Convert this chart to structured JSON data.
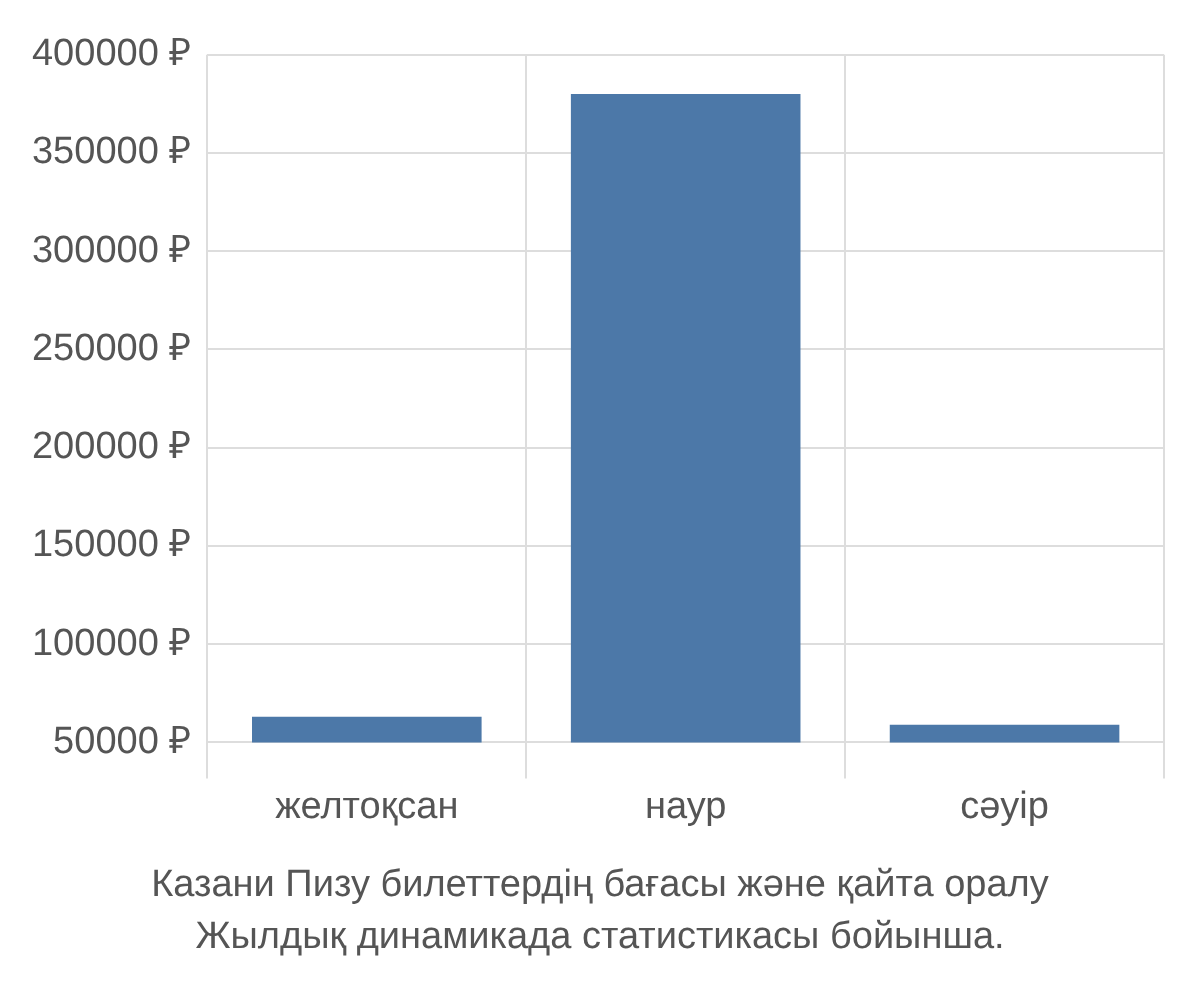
{
  "chart_data": {
    "type": "bar",
    "title": "Казани Пизу билеттердің бағасы және қайта оралу",
    "subtitle": "Жылдық динамикада статистикасы бойынша.",
    "categories": [
      "желтоқсан",
      "наур",
      "сәуір"
    ],
    "values": [
      63000,
      380000,
      59000
    ],
    "color": "#4c78a8",
    "ylim": [
      50000,
      400000
    ],
    "yticks": [
      {
        "value": 50000,
        "label": "50000 ₽"
      },
      {
        "value": 100000,
        "label": "100000 ₽"
      },
      {
        "value": 150000,
        "label": "150000 ₽"
      },
      {
        "value": 200000,
        "label": "200000 ₽"
      },
      {
        "value": 250000,
        "label": "250000 ₽"
      },
      {
        "value": 300000,
        "label": "300000 ₽"
      },
      {
        "value": 350000,
        "label": "350000 ₽"
      },
      {
        "value": 400000,
        "label": "400000 ₽"
      }
    ],
    "grid": true,
    "legend": false
  }
}
